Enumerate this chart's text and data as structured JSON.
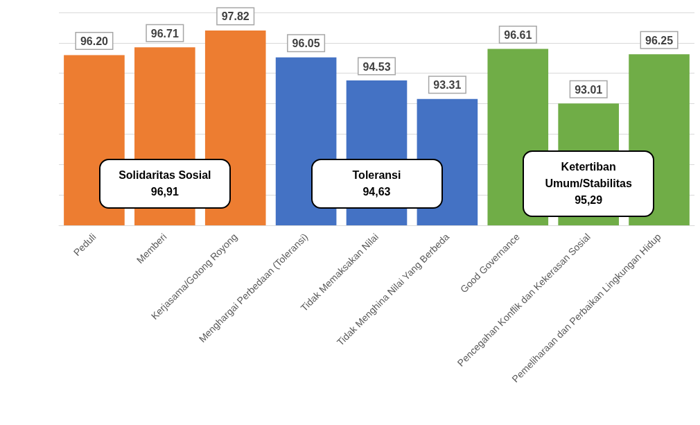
{
  "chart_data": {
    "type": "bar",
    "categories": [
      "Peduli",
      "Memberi",
      "Kerjasama/Gotong Royong",
      "Menghargai Perbedaan (Toleransi)",
      "Tidak Memaksakan Nilai",
      "Tidak Menghina Nilai Yang Berbeda",
      "Good Governance",
      "Pencegahan Konflik dan Kekerasan Sosial",
      "Pemeliharaan dan Perbaikan Lingkungan Hidup"
    ],
    "values": [
      96.2,
      96.71,
      97.82,
      96.05,
      94.53,
      93.31,
      96.61,
      93.01,
      96.25
    ],
    "value_labels": [
      "96.20",
      "96.71",
      "97.82",
      "96.05",
      "94.53",
      "93.31",
      "96.61",
      "93.01",
      "96.25"
    ],
    "colors": [
      "#ed7d31",
      "#ed7d31",
      "#ed7d31",
      "#4472c4",
      "#4472c4",
      "#4472c4",
      "#70ad47",
      "#70ad47",
      "#70ad47"
    ],
    "ylim": [
      85,
      99
    ],
    "yticks": [
      {
        "value": 85,
        "label": null
      },
      {
        "value": 87,
        "label": null
      },
      {
        "value": 89,
        "label": null
      },
      {
        "value": 91,
        "label": null
      },
      {
        "value": 93,
        "label": null
      },
      {
        "value": 95,
        "label": null
      },
      {
        "value": 97,
        "label": null
      },
      {
        "value": 99,
        "label": null
      }
    ],
    "tick_labels": "x",
    "grid": "y",
    "annotations": [
      "Solidaritas Sosial\n96,91",
      "Toleransi\n94,63",
      "Ketertiban Umum/Stabilitas\n95,29"
    ]
  }
}
